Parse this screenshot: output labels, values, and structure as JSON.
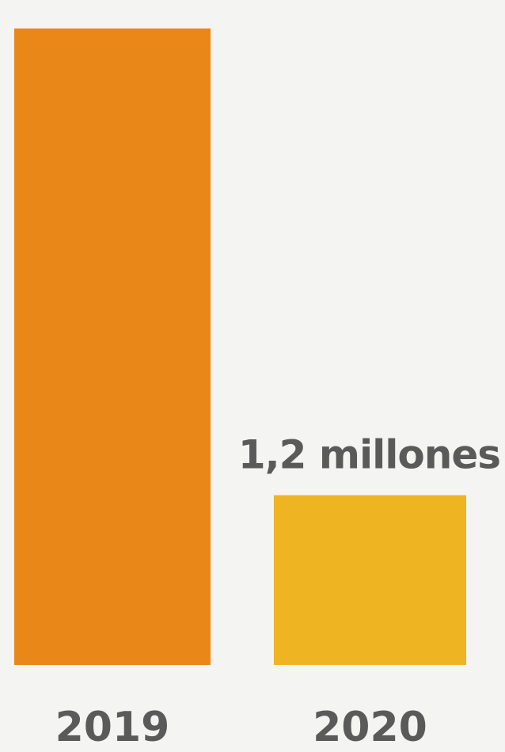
{
  "chart_data": {
    "type": "bar",
    "categories": [
      "2019",
      "2020"
    ],
    "values": [
      4.5,
      1.2
    ],
    "data_labels": [
      "",
      "1,2 millones"
    ],
    "ylim": [
      0,
      4.5
    ],
    "grid": false,
    "colors": [
      "#e98718",
      "#efb421"
    ]
  }
}
